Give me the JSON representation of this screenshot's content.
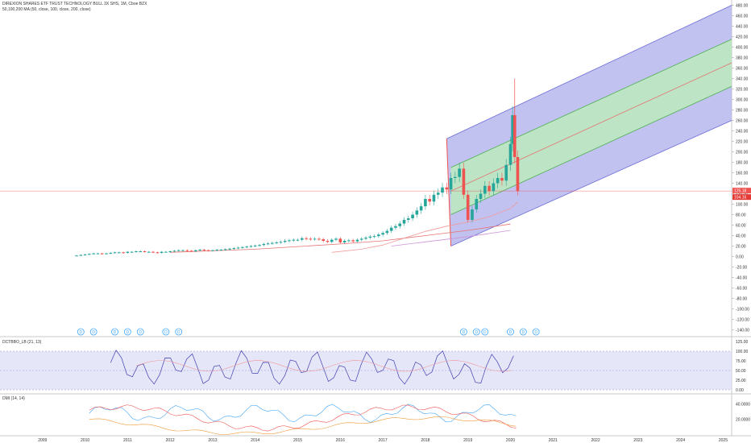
{
  "header": {
    "title": "DIREXION SHARES ETF TRUST TECHNOLOGY BULL 3X SHS, 1M, Cboe BZX",
    "subtitle": "50,100,200 MA (50, close, 100, close, 200, close)"
  },
  "price_labels": {
    "last": "125.18",
    "ma": "104.16"
  },
  "colors": {
    "up": "#26a69a",
    "down": "#ef5350",
    "channel_outer": "#6b6bd6",
    "channel_outer_fill": "#b3b3ec",
    "channel_inner": "#4caf50",
    "channel_inner_fill": "#bde8bf",
    "median": "#e57373",
    "last_price": "#ef5350",
    "ma50": "#ef9a9a",
    "ma100": "#e57373",
    "ma200": "#ce93d8",
    "rsi": "#3f3fb0",
    "rsi_band": "#dcdcf7",
    "dmi_plus": "#42a5f5",
    "dmi_minus": "#ef5350",
    "dmi_adx": "#ef9a3a",
    "event_icon": "#42a5f5"
  },
  "event_marker": "D",
  "indicators": {
    "osc": {
      "title": "DCTBBO_LB (21, 13)",
      "ticks": [
        "125.00",
        "100.00",
        "75.00",
        "50.00",
        "25.00",
        "0.00"
      ]
    },
    "dmi": {
      "title": "DMI (14, 14)",
      "ticks": [
        "40.0000",
        "20.0000"
      ]
    }
  },
  "chart_data": {
    "type": "candlestick",
    "title": "DIREXION SHARES ETF TRUST TECHNOLOGY BULL 3X SHS, 1M, Cboe BZX",
    "x_ticks": [
      "2009",
      "2010",
      "2011",
      "2012",
      "2013",
      "2014",
      "2015",
      "2016",
      "2017",
      "2018",
      "2019",
      "2020",
      "2021",
      "2022",
      "2023",
      "2024",
      "2025"
    ],
    "y_ticks": [
      "480.00",
      "460.00",
      "440.00",
      "420.00",
      "400.00",
      "380.00",
      "360.00",
      "340.00",
      "320.00",
      "300.00",
      "280.00",
      "260.00",
      "240.00",
      "220.00",
      "200.00",
      "180.00",
      "160.00",
      "140.00",
      "120.00",
      "100.00",
      "80.00",
      "60.00",
      "40.00",
      "20.00",
      "0.00",
      "-20.00",
      "-40.00",
      "-60.00",
      "-80.00",
      "-100.00",
      "-120.00",
      "-140.00"
    ],
    "ylim": [
      -150,
      490
    ],
    "xlim": [
      2008.0,
      2025.2
    ],
    "series_close": [
      [
        2009.8,
        2
      ],
      [
        2009.9,
        3
      ],
      [
        2010.0,
        4
      ],
      [
        2010.1,
        5
      ],
      [
        2010.2,
        6
      ],
      [
        2010.3,
        6
      ],
      [
        2010.4,
        5
      ],
      [
        2010.5,
        6
      ],
      [
        2010.6,
        7
      ],
      [
        2010.7,
        8
      ],
      [
        2010.8,
        8
      ],
      [
        2010.9,
        7
      ],
      [
        2011.0,
        9
      ],
      [
        2011.1,
        9
      ],
      [
        2011.2,
        10
      ],
      [
        2011.3,
        10
      ],
      [
        2011.4,
        9
      ],
      [
        2011.5,
        9
      ],
      [
        2011.6,
        8
      ],
      [
        2011.7,
        7
      ],
      [
        2011.8,
        9
      ],
      [
        2011.9,
        9
      ],
      [
        2012.0,
        10
      ],
      [
        2012.1,
        11
      ],
      [
        2012.2,
        12
      ],
      [
        2012.3,
        12
      ],
      [
        2012.4,
        11
      ],
      [
        2012.5,
        10
      ],
      [
        2012.6,
        12
      ],
      [
        2012.7,
        13
      ],
      [
        2012.8,
        12
      ],
      [
        2012.9,
        11
      ],
      [
        2013.0,
        12
      ],
      [
        2013.1,
        13
      ],
      [
        2013.2,
        13
      ],
      [
        2013.3,
        14
      ],
      [
        2013.4,
        15
      ],
      [
        2013.5,
        16
      ],
      [
        2013.6,
        17
      ],
      [
        2013.7,
        18
      ],
      [
        2013.8,
        19
      ],
      [
        2013.9,
        20
      ],
      [
        2014.0,
        21
      ],
      [
        2014.1,
        22
      ],
      [
        2014.2,
        24
      ],
      [
        2014.3,
        25
      ],
      [
        2014.4,
        26
      ],
      [
        2014.5,
        27
      ],
      [
        2014.6,
        28
      ],
      [
        2014.7,
        30
      ],
      [
        2014.8,
        31
      ],
      [
        2014.9,
        32
      ],
      [
        2015.0,
        32
      ],
      [
        2015.1,
        35
      ],
      [
        2015.2,
        34
      ],
      [
        2015.3,
        33
      ],
      [
        2015.4,
        34
      ],
      [
        2015.5,
        33
      ],
      [
        2015.6,
        30
      ],
      [
        2015.7,
        28
      ],
      [
        2015.8,
        32
      ],
      [
        2015.9,
        34
      ],
      [
        2016.0,
        27
      ],
      [
        2016.1,
        30
      ],
      [
        2016.2,
        31
      ],
      [
        2016.3,
        29
      ],
      [
        2016.4,
        32
      ],
      [
        2016.5,
        34
      ],
      [
        2016.6,
        36
      ],
      [
        2016.7,
        38
      ],
      [
        2016.8,
        39
      ],
      [
        2016.9,
        42
      ],
      [
        2017.0,
        45
      ],
      [
        2017.1,
        49
      ],
      [
        2017.2,
        55
      ],
      [
        2017.3,
        58
      ],
      [
        2017.4,
        63
      ],
      [
        2017.5,
        70
      ],
      [
        2017.6,
        73
      ],
      [
        2017.7,
        80
      ],
      [
        2017.8,
        88
      ],
      [
        2017.9,
        96
      ],
      [
        2018.0,
        110
      ],
      [
        2018.1,
        105
      ],
      [
        2018.2,
        118
      ],
      [
        2018.3,
        122
      ],
      [
        2018.4,
        132
      ],
      [
        2018.5,
        128
      ],
      [
        2018.6,
        150
      ],
      [
        2018.7,
        152
      ],
      [
        2018.8,
        168
      ],
      [
        2018.9,
        118
      ],
      [
        2019.0,
        70
      ],
      [
        2019.1,
        90
      ],
      [
        2019.2,
        110
      ],
      [
        2019.3,
        120
      ],
      [
        2019.4,
        135
      ],
      [
        2019.5,
        125
      ],
      [
        2019.6,
        140
      ],
      [
        2019.7,
        150
      ],
      [
        2019.8,
        145
      ],
      [
        2019.9,
        175
      ],
      [
        2020.0,
        215
      ],
      [
        2020.05,
        270
      ],
      [
        2020.1,
        190
      ],
      [
        2020.17,
        125
      ]
    ],
    "median_line": [
      [
        2018.6,
        125
      ],
      [
        2025.2,
        370
      ]
    ],
    "inner_upper": [
      [
        2018.6,
        170
      ],
      [
        2025.2,
        415
      ]
    ],
    "inner_lower": [
      [
        2018.6,
        80
      ],
      [
        2025.2,
        325
      ]
    ],
    "outer_upper": [
      [
        2018.5,
        225
      ],
      [
        2025.2,
        480
      ]
    ],
    "outer_lower": [
      [
        2018.6,
        20
      ],
      [
        2025.2,
        260
      ]
    ],
    "ma50": [
      [
        2015.8,
        8
      ],
      [
        2016.5,
        14
      ],
      [
        2017.0,
        22
      ],
      [
        2017.5,
        35
      ],
      [
        2018.0,
        48
      ],
      [
        2018.5,
        58
      ],
      [
        2019.0,
        66
      ],
      [
        2019.5,
        76
      ],
      [
        2020.0,
        92
      ],
      [
        2020.17,
        104
      ]
    ],
    "ma100": [
      [
        2012.0,
        8
      ],
      [
        2014.0,
        14
      ],
      [
        2016.0,
        24
      ],
      [
        2017.0,
        30
      ],
      [
        2018.0,
        40
      ],
      [
        2019.0,
        50
      ],
      [
        2020.0,
        62
      ]
    ],
    "ma200": [
      [
        2017.2,
        20
      ],
      [
        2018.0,
        28
      ],
      [
        2019.0,
        38
      ],
      [
        2020.0,
        50
      ]
    ],
    "last_price": 125.18,
    "events_x": [
      2009.9,
      2010.2,
      2010.7,
      2011.0,
      2011.3,
      2011.9,
      2012.2,
      2018.9,
      2019.2,
      2019.4,
      2020.0,
      2020.3,
      2020.6
    ]
  }
}
